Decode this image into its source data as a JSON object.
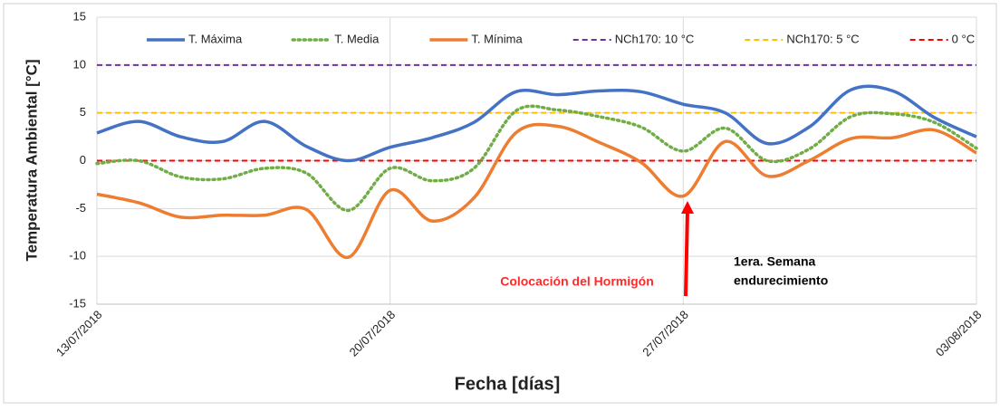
{
  "chart_data": {
    "type": "line",
    "y_label": "Temperatura Ambiental [°C]",
    "x_label": "Fecha [días]",
    "categories": [
      "13/07/2018",
      null,
      null,
      null,
      null,
      null,
      null,
      "20/07/2018",
      null,
      null,
      null,
      null,
      null,
      null,
      "27/07/2018",
      null,
      null,
      null,
      null,
      null,
      null,
      "03/08/2018"
    ],
    "series": [
      {
        "name": "T. Máxima",
        "color": "#4472c4",
        "dash": "solid",
        "values": [
          2.9,
          4.1,
          2.5,
          2.0,
          4.1,
          1.5,
          0.0,
          1.4,
          2.4,
          4.0,
          7.2,
          6.9,
          7.3,
          7.2,
          5.9,
          5.0,
          1.8,
          3.5,
          7.4,
          7.3,
          4.5,
          2.5
        ]
      },
      {
        "name": "T. Media",
        "color": "#70ad47",
        "dash": "dotted",
        "values": [
          -0.3,
          0.0,
          -1.7,
          -1.9,
          -0.8,
          -1.3,
          -5.2,
          -0.8,
          -2.1,
          -0.8,
          5.2,
          5.3,
          4.6,
          3.5,
          1.0,
          3.4,
          0.0,
          1.2,
          4.6,
          4.9,
          4.0,
          1.3
        ]
      },
      {
        "name": "T. Mínima",
        "color": "#ed7d31",
        "dash": "solid",
        "values": [
          -3.5,
          -4.4,
          -5.9,
          -5.7,
          -5.7,
          -5.1,
          -10.1,
          -3.1,
          -6.3,
          -3.9,
          2.9,
          3.6,
          1.9,
          -0.2,
          -3.7,
          2.0,
          -1.6,
          0.0,
          2.3,
          2.4,
          3.2,
          0.8
        ]
      }
    ],
    "hlines": [
      {
        "name": "NCh170: 10 °C",
        "color": "#7030a0",
        "value": 10
      },
      {
        "name": "NCh170: 5 °C",
        "color": "#ffc000",
        "value": 5
      },
      {
        "name": "0 °C",
        "color": "#ff0000",
        "value": 0
      }
    ],
    "ylim": [
      -15,
      15
    ],
    "yticks": [
      -15,
      -10,
      -5,
      0,
      5,
      10,
      15
    ],
    "grid": true,
    "legend": "top",
    "annotations": [
      {
        "text": [
          "Colocación del Hormigón"
        ],
        "color": "#ff2a2a"
      },
      {
        "text": [
          "1era. Semana",
          "endurecimiento"
        ],
        "color": "#000000"
      }
    ]
  }
}
